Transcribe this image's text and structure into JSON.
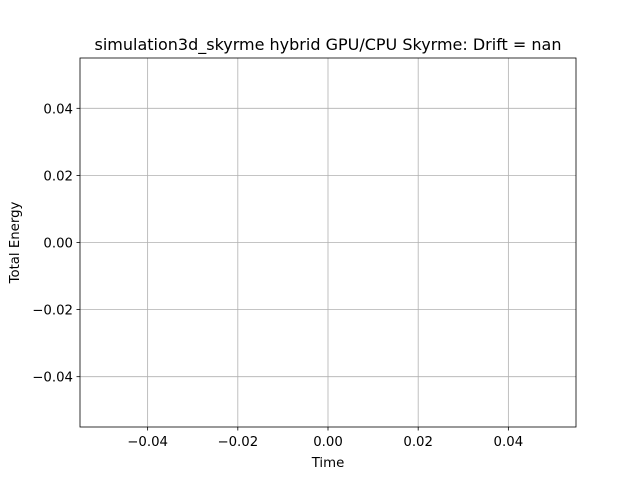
{
  "chart_data": {
    "type": "line",
    "title": "simulation3d_skyrme hybrid GPU/CPU Skyrme: Drift = nan",
    "xlabel": "Time",
    "ylabel": "Total Energy",
    "xlim": [
      -0.055,
      0.055
    ],
    "ylim": [
      -0.055,
      0.055
    ],
    "x_ticks": [
      -0.04,
      -0.02,
      0.0,
      0.02,
      0.04
    ],
    "y_ticks": [
      -0.04,
      -0.02,
      0.0,
      0.02,
      0.04
    ],
    "x_tick_labels": [
      "−0.04",
      "−0.02",
      "0.00",
      "0.02",
      "0.04"
    ],
    "y_tick_labels": [
      "−0.04",
      "−0.02",
      "0.00",
      "0.02",
      "0.04"
    ],
    "grid": true,
    "legend": "none",
    "series": [],
    "colors": {
      "grid": "#b0b0b0",
      "axes": "#000000",
      "background": "#ffffff"
    }
  }
}
